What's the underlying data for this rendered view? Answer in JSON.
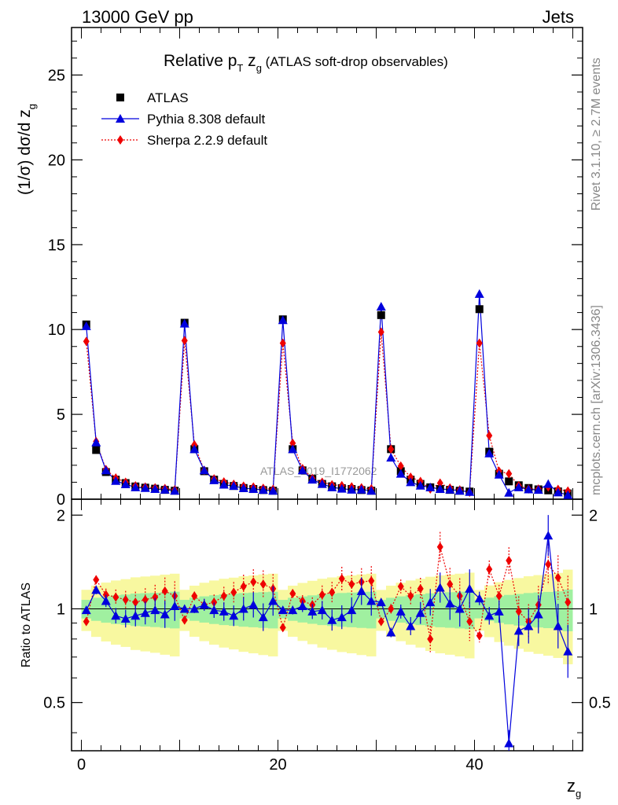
{
  "header": {
    "energy_label": "13000 GeV pp",
    "process_label": "Jets"
  },
  "side_labels": {
    "rivet": "Rivet 3.1.10, ≥ 2.7M events",
    "mcplots": "mcplots.cern.ch [arXiv:1306.3436]"
  },
  "chart_data": {
    "type": "scatter",
    "title_main": "Relative p",
    "title_sub1": "T",
    "title_mid": " z",
    "title_sub2": "g",
    "title_tail": " (ATLAS soft-drop observables)",
    "analysis_label": "ATLAS_2019_I1772062",
    "xlabel": "z",
    "xlabel_sub": "g",
    "ylabel": "(1/σ) dσ/d z",
    "ylabel_sub": "g",
    "ratio_ylabel": "Ratio to ATLAS",
    "xlim": [
      -1,
      51
    ],
    "ylim": [
      0,
      27.8
    ],
    "ratio_ylim": [
      0.35,
      2.25
    ],
    "x_ticks": [
      0,
      20,
      40
    ],
    "x_tick_labels": [
      "0",
      "20",
      "40"
    ],
    "y_ticks": [
      0,
      5,
      10,
      15,
      20,
      25
    ],
    "y_tick_labels": [
      "0",
      "5",
      "10",
      "15",
      "20",
      "25"
    ],
    "ratio_ticks": [
      0.5,
      1,
      2
    ],
    "ratio_tick_labels": [
      "0.5",
      "1",
      "2"
    ],
    "colors": {
      "data": "#000000",
      "pythia": "#0000dd",
      "sherpa": "#ee0000",
      "band_inner": "#a0f0a0",
      "band_outer": "#f8f8a0"
    },
    "x": [
      0.5,
      1.5,
      2.5,
      3.5,
      4.5,
      5.5,
      6.5,
      7.5,
      8.5,
      9.5,
      10.5,
      11.5,
      12.5,
      13.5,
      14.5,
      15.5,
      16.5,
      17.5,
      18.5,
      19.5,
      20.5,
      21.5,
      22.5,
      23.5,
      24.5,
      25.5,
      26.5,
      27.5,
      28.5,
      29.5,
      30.5,
      31.5,
      32.5,
      33.5,
      34.5,
      35.5,
      36.5,
      37.5,
      38.5,
      39.5,
      40.5,
      41.5,
      42.5,
      43.5,
      44.5,
      45.5,
      46.5,
      47.5,
      48.5,
      49.5
    ],
    "series": [
      {
        "name": "ATLAS",
        "marker": "square",
        "values": [
          10.3,
          2.9,
          1.6,
          1.15,
          0.95,
          0.75,
          0.68,
          0.62,
          0.55,
          0.5,
          10.4,
          2.95,
          1.65,
          1.15,
          0.9,
          0.78,
          0.66,
          0.6,
          0.54,
          0.5,
          10.6,
          2.95,
          1.7,
          1.2,
          0.9,
          0.76,
          0.65,
          0.6,
          0.54,
          0.5,
          10.85,
          2.95,
          1.65,
          1.15,
          0.9,
          0.7,
          0.6,
          0.55,
          0.5,
          0.45,
          11.2,
          2.8,
          1.5,
          1.05,
          0.82,
          0.66,
          0.58,
          0.52,
          0.46,
          0.34
        ]
      },
      {
        "name": "Pythia 8.308 default",
        "marker": "triangle",
        "values": [
          10.2,
          3.35,
          1.7,
          1.08,
          0.88,
          0.7,
          0.66,
          0.6,
          0.56,
          0.5,
          10.35,
          2.95,
          1.7,
          1.12,
          0.86,
          0.78,
          0.65,
          0.6,
          0.55,
          0.5,
          10.55,
          2.95,
          1.7,
          1.15,
          0.9,
          0.7,
          0.62,
          0.56,
          0.57,
          0.5,
          11.35,
          2.45,
          1.5,
          1.0,
          0.8,
          0.7,
          0.6,
          0.57,
          0.5,
          0.43,
          12.1,
          2.7,
          1.45,
          0.38,
          0.7,
          0.58,
          0.55,
          0.9,
          0.4,
          0.25
        ]
      },
      {
        "name": "Sherpa 2.2.9 default",
        "marker": "diamond",
        "values": [
          9.3,
          3.4,
          1.75,
          1.25,
          1.0,
          0.79,
          0.72,
          0.67,
          0.63,
          0.55,
          9.35,
          3.2,
          1.7,
          1.2,
          1.02,
          0.88,
          0.77,
          0.72,
          0.64,
          0.58,
          9.2,
          3.3,
          1.8,
          1.23,
          1.0,
          0.85,
          0.8,
          0.73,
          0.67,
          0.61,
          9.85,
          2.95,
          1.95,
          1.3,
          1.05,
          0.6,
          0.95,
          0.66,
          0.55,
          0.41,
          9.2,
          3.75,
          1.65,
          1.5,
          0.8,
          0.6,
          0.6,
          0.72,
          0.58,
          0.48
        ]
      }
    ],
    "ratio_series": [
      {
        "name": "Pythia 8.308 default",
        "values": [
          0.99,
          1.15,
          1.06,
          0.95,
          0.93,
          0.95,
          0.97,
          0.99,
          0.96,
          1.02,
          1.0,
          1.0,
          1.03,
          0.99,
          0.98,
          0.95,
          1.0,
          1.03,
          0.94,
          1.06,
          0.99,
          0.99,
          1.02,
          0.98,
          0.99,
          0.92,
          0.94,
          0.99,
          1.14,
          1.06,
          1.05,
          0.84,
          0.98,
          0.88,
          0.97,
          1.05,
          1.17,
          1.04,
          1.0,
          1.16,
          1.08,
          0.95,
          0.98,
          0.37,
          0.85,
          0.88,
          0.96,
          1.72,
          0.88,
          0.73
        ]
      },
      {
        "name": "Sherpa 2.2.9 default",
        "values": [
          0.91,
          1.24,
          1.11,
          1.09,
          1.07,
          1.05,
          1.07,
          1.09,
          1.14,
          1.1,
          0.92,
          1.1,
          1.03,
          1.05,
          1.1,
          1.13,
          1.18,
          1.22,
          1.2,
          1.16,
          0.87,
          1.12,
          1.06,
          1.03,
          1.11,
          1.13,
          1.25,
          1.2,
          1.22,
          1.23,
          0.91,
          1.0,
          1.18,
          1.1,
          1.16,
          0.8,
          1.58,
          1.2,
          1.1,
          0.91,
          0.82,
          1.34,
          1.1,
          1.43,
          0.98,
          0.91,
          1.03,
          1.39,
          1.26,
          1.05
        ]
      }
    ],
    "legend_position": "top-left"
  }
}
